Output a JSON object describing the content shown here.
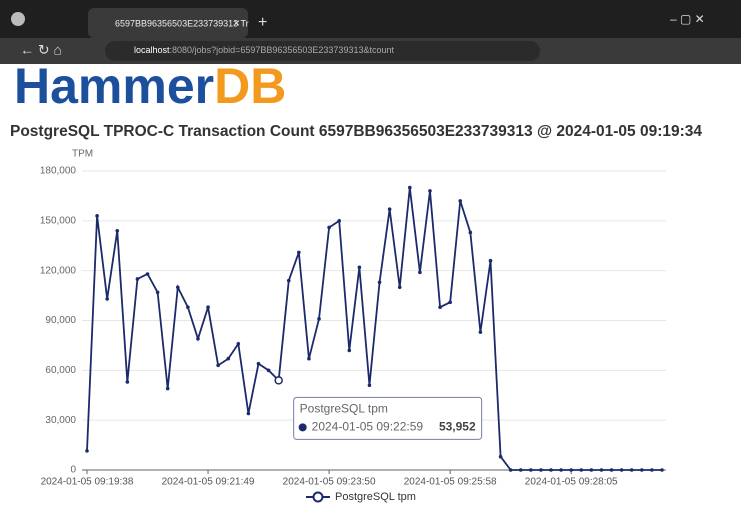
{
  "browser": {
    "tab_title": "6597BB96356503E233739313 Tr",
    "url_host": "localhost",
    "url_rest": ":8080/jobs?jobid=6597BB96356503E233739313&tcount"
  },
  "logo": {
    "left": "Hammer",
    "right": "DB"
  },
  "chart_data": {
    "type": "line",
    "title": "PostgreSQL TPROC-C Transaction Count 6597BB96356503E233739313 @ 2024-01-05 09:19:34",
    "y_label": "TPM",
    "categories": [
      "2024-01-05 09:19:38",
      null,
      null,
      null,
      null,
      null,
      null,
      null,
      null,
      null,
      null,
      null,
      "2024-01-05 09:21:49",
      null,
      null,
      null,
      null,
      null,
      null,
      null,
      null,
      null,
      null,
      null,
      "2024-01-05 09:23:50",
      null,
      null,
      null,
      null,
      null,
      null,
      null,
      null,
      null,
      null,
      null,
      "2024-01-05 09:25:58",
      null,
      null,
      null,
      null,
      null,
      null,
      null,
      null,
      null,
      null,
      null,
      "2024-01-05 09:28:05",
      null,
      null,
      null,
      null,
      null,
      null,
      null,
      null,
      null
    ],
    "series": [
      {
        "name": "PostgreSQL tpm",
        "color": "#1b2a6b",
        "values": [
          11500,
          153000,
          103000,
          144000,
          53000,
          115000,
          118000,
          107000,
          49000,
          110000,
          98000,
          79000,
          98000,
          63000,
          67000,
          76000,
          34000,
          64000,
          60000,
          53952,
          114000,
          131000,
          67000,
          91000,
          146000,
          150000,
          72000,
          122000,
          51000,
          113000,
          157000,
          110000,
          170000,
          119000,
          168000,
          98000,
          101000,
          162000,
          143000,
          83000,
          126000,
          8000,
          0,
          0,
          0,
          0,
          0,
          0,
          0,
          0,
          0,
          0,
          0,
          0,
          0,
          0,
          0,
          0
        ]
      }
    ],
    "ylim": [
      0,
      180000
    ],
    "yticks": [
      0,
      {
        "value": 30000,
        "label": "30,000"
      },
      {
        "value": 60000,
        "label": "60,000"
      },
      {
        "value": 90000,
        "label": "90,000"
      },
      {
        "value": 120000,
        "label": "120,000"
      },
      {
        "value": 150000,
        "label": "150,000"
      },
      {
        "value": 180000,
        "label": "180,000"
      }
    ],
    "grid": true,
    "tooltip": {
      "series": "PostgreSQL tpm",
      "category": "2024-01-05 09:22:59",
      "value": 53952,
      "label": "53,952"
    }
  }
}
